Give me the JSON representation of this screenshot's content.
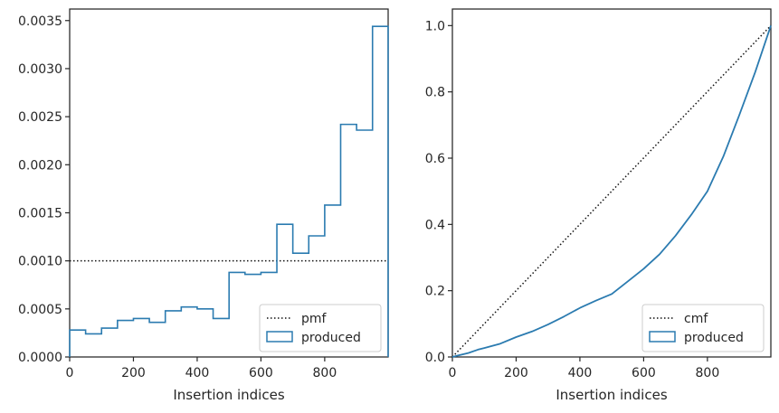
{
  "chart_data": [
    {
      "type": "line",
      "subtype": "step-histogram",
      "xlabel": "Insertion indices",
      "ylabel": "",
      "xlim": [
        0,
        999
      ],
      "ylim": [
        0,
        0.00362
      ],
      "xticks": [
        0,
        200,
        400,
        600,
        800
      ],
      "xtick_labels": [
        "0",
        "200",
        "400",
        "600",
        "800"
      ],
      "yticks": [
        0,
        0.0005,
        0.001,
        0.0015,
        0.002,
        0.0025,
        0.003,
        0.0035
      ],
      "ytick_labels": [
        "0.0000",
        "0.0005",
        "0.0010",
        "0.0015",
        "0.0020",
        "0.0025",
        "0.0030",
        "0.0035"
      ],
      "legend_position": "lower-right",
      "grid": false,
      "series": [
        {
          "name": "pmf",
          "style": "dotted",
          "color": "#111111",
          "x": [
            0,
            999
          ],
          "y": [
            0.001,
            0.001
          ]
        },
        {
          "name": "produced",
          "style": "step",
          "color": "#2b7bb0",
          "bin_edges": [
            0,
            50,
            100,
            150,
            200,
            250,
            300,
            350,
            400,
            450,
            500,
            550,
            600,
            650,
            700,
            750,
            800,
            850,
            900,
            950,
            999
          ],
          "values": [
            0.00028,
            0.00024,
            0.0003,
            0.00038,
            0.0004,
            0.00036,
            0.00048,
            0.00052,
            0.0005,
            0.0004,
            0.00088,
            0.00086,
            0.00088,
            0.00138,
            0.00108,
            0.00126,
            0.00158,
            0.00242,
            0.00236,
            0.00344
          ]
        }
      ]
    },
    {
      "type": "line",
      "subtype": "cumulative",
      "xlabel": "Insertion indices",
      "ylabel": "",
      "xlim": [
        0,
        999
      ],
      "ylim": [
        0,
        1.05
      ],
      "xticks": [
        0,
        200,
        400,
        600,
        800
      ],
      "xtick_labels": [
        "0",
        "200",
        "400",
        "600",
        "800"
      ],
      "yticks": [
        0,
        0.2,
        0.4,
        0.6,
        0.8,
        1.0
      ],
      "ytick_labels": [
        "0.0",
        "0.2",
        "0.4",
        "0.6",
        "0.8",
        "1.0"
      ],
      "legend_position": "lower-right",
      "grid": false,
      "series": [
        {
          "name": "cmf",
          "style": "dotted",
          "color": "#111111",
          "x": [
            0,
            999
          ],
          "y": [
            0,
            1.0
          ]
        },
        {
          "name": "produced",
          "style": "line",
          "color": "#2b7bb0",
          "x": [
            0,
            20,
            50,
            80,
            100,
            150,
            200,
            250,
            300,
            350,
            400,
            450,
            500,
            550,
            600,
            650,
            700,
            750,
            800,
            850,
            900,
            950,
            999
          ],
          "y": [
            0,
            0.005,
            0.012,
            0.022,
            0.027,
            0.04,
            0.06,
            0.077,
            0.098,
            0.122,
            0.148,
            0.17,
            0.19,
            0.228,
            0.266,
            0.31,
            0.366,
            0.43,
            0.5,
            0.605,
            0.73,
            0.86,
            1.0
          ]
        }
      ]
    }
  ]
}
